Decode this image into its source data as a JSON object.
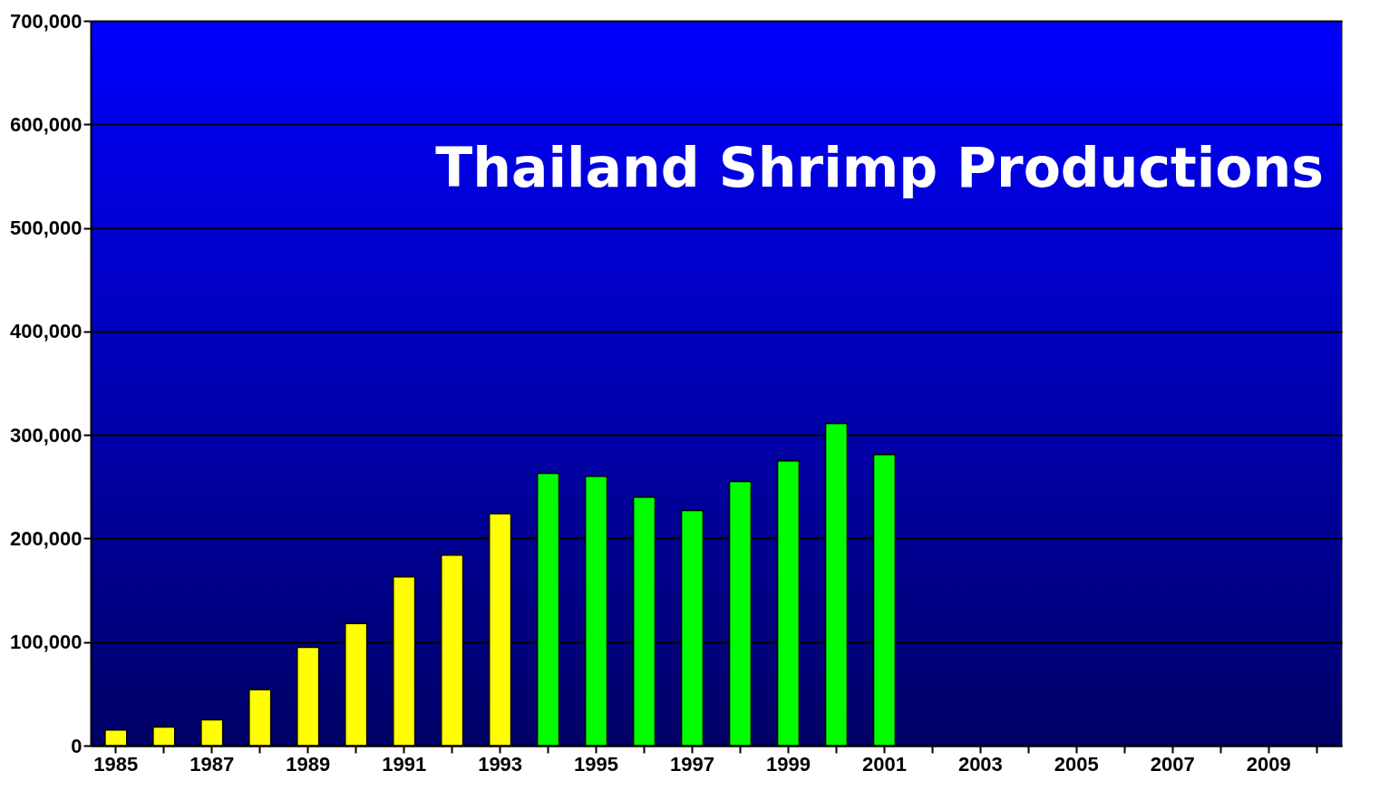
{
  "chart_data": {
    "type": "bar",
    "title": "Thailand Shrimp Productions",
    "categories": [
      "1985",
      null,
      "1987",
      null,
      "1989",
      null,
      "1991",
      null,
      "1993",
      null,
      "1995",
      null,
      "1997",
      null,
      "1999",
      null,
      "2001",
      null,
      "2003",
      null,
      "2005",
      null,
      "2007",
      null,
      "2009",
      null
    ],
    "values": [
      15000,
      18000,
      25000,
      54000,
      95000,
      118000,
      163000,
      184000,
      224000,
      263000,
      260000,
      240000,
      227000,
      255000,
      275000,
      311000,
      281000,
      0,
      0,
      0,
      0,
      0,
      0,
      0,
      0,
      0
    ],
    "colors": [
      "#ffff00",
      "#ffff00",
      "#ffff00",
      "#ffff00",
      "#ffff00",
      "#ffff00",
      "#ffff00",
      "#ffff00",
      "#ffff00",
      "#00ff00",
      "#00ff00",
      "#00ff00",
      "#00ff00",
      "#00ff00",
      "#00ff00",
      "#00ff00",
      "#00ff00",
      "#000000",
      "#000000",
      "#000000",
      "#000000",
      "#000000",
      "#000000",
      "#000000",
      "#000000",
      "#000000"
    ],
    "ylim": [
      0,
      700000
    ],
    "yticks": [
      {
        "value": 0,
        "label": "0"
      },
      {
        "value": 100000,
        "label": "100,000"
      },
      {
        "value": 200000,
        "label": "200,000"
      },
      {
        "value": 300000,
        "label": "300,000"
      },
      {
        "value": 400000,
        "label": "400,000"
      },
      {
        "value": 500000,
        "label": "500,000"
      },
      {
        "value": 600000,
        "label": "600,000"
      },
      {
        "value": 700000,
        "label": "700,000"
      }
    ],
    "grid": "y"
  }
}
